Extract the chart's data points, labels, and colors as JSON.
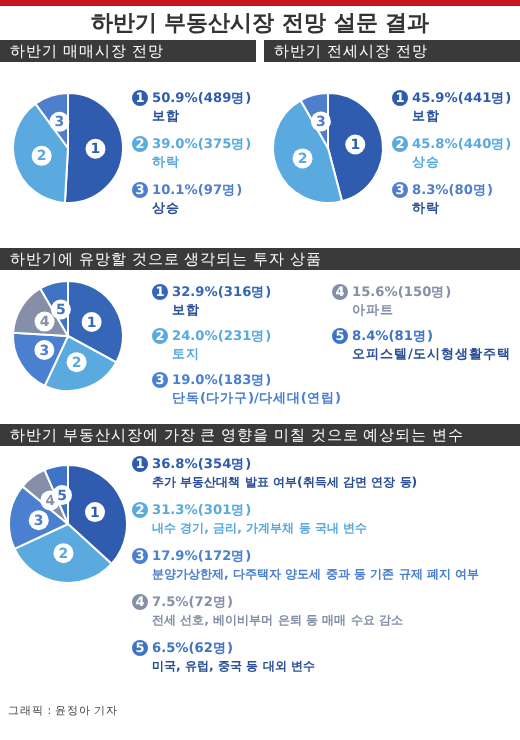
{
  "chart_data": [
    {
      "type": "pie",
      "title": "하반기 부동산시장 전망 설문 결과",
      "subtitle": "하반기 매매시장 전망",
      "legend": "right",
      "categories": [
        "보합",
        "하락",
        "상승"
      ],
      "values": [
        50.9,
        39.0,
        10.1
      ],
      "value_labels": [
        "50.9%(489명)",
        "39.0%(375명)",
        "10.1%(97명)"
      ],
      "colors": [
        "#2f5cae",
        "#5aaadf",
        "#4f7fcc"
      ],
      "annotations": [
        {
          "text": "1",
          "x": "보합"
        },
        {
          "text": "2",
          "x": "하락"
        },
        {
          "text": "3",
          "x": "상승"
        }
      ]
    },
    {
      "type": "pie",
      "subtitle": "하반기 전세시장 전망",
      "legend": "right",
      "categories": [
        "보합",
        "상승",
        "하락"
      ],
      "values": [
        45.9,
        45.8,
        8.3
      ],
      "value_labels": [
        "45.9%(441명)",
        "45.8%(440명)",
        "8.3%(80명)"
      ],
      "colors": [
        "#2f5cae",
        "#5aaadf",
        "#4f7fcc"
      ],
      "annotations": [
        {
          "text": "1",
          "x": "보합"
        },
        {
          "text": "2",
          "x": "상승"
        },
        {
          "text": "3",
          "x": "하락"
        }
      ]
    },
    {
      "type": "pie",
      "subtitle": "하반기에 유망할 것으로 생각되는 투자 상품",
      "legend": "right",
      "categories": [
        "보합",
        "토지",
        "단독(다가구)/다세대(연립)",
        "아파트",
        "오피스텔/도시형생활주택"
      ],
      "values": [
        32.9,
        24.0,
        19.0,
        15.6,
        8.4
      ],
      "value_labels": [
        "32.9%(316명)",
        "24.0%(231명)",
        "19.0%(183명)",
        "15.6%(150명)",
        "8.4%(81명)"
      ],
      "colors": [
        "#3566b8",
        "#5aaadf",
        "#4a80cf",
        "#8590a8",
        "#3f74c4"
      ],
      "annotations": [
        {
          "text": "1",
          "x": "보합"
        },
        {
          "text": "2",
          "x": "토지"
        },
        {
          "text": "3",
          "x": "단독(다가구)/다세대(연립)"
        },
        {
          "text": "4",
          "x": "아파트"
        },
        {
          "text": "5",
          "x": "오피스텔/도시형생활주택"
        }
      ]
    },
    {
      "type": "pie",
      "subtitle": "하반기 부동산시장에 가장 큰 영향을 미칠 것으로 예상되는 변수",
      "legend": "right",
      "categories": [
        "추가 부동산대책 발표 여부(취득세 감면 연장 등)",
        "내수 경기, 금리, 가계부채 등 국내 변수",
        "분양가상한제, 다주택자 양도세 중과 등 기존 규제 폐지 여부",
        "전세 선호, 베이비부머 은퇴 등 매매 수요 감소",
        "미국, 유럽, 중국 등 대외 변수"
      ],
      "values": [
        36.8,
        31.3,
        17.9,
        7.5,
        6.5
      ],
      "value_labels": [
        "36.8%(354명)",
        "31.3%(301명)",
        "17.9%(172명)",
        "7.5%(72명)",
        "6.5%(62명)"
      ],
      "colors": [
        "#2f5cae",
        "#5aaadf",
        "#4a80cf",
        "#8590a8",
        "#3f74c4"
      ],
      "annotations": [
        {
          "text": "1",
          "x": "추가 부동산대책 발표 여부(취득세 감면 연장 등)"
        },
        {
          "text": "2",
          "x": "내수 경기, 금리, 가계부채 등 국내 변수"
        },
        {
          "text": "3",
          "x": "분양가상한제, 다주택자 양도세 중과 등 기존 규제 폐지 여부"
        },
        {
          "text": "4",
          "x": "전세 선호, 베이비부머 은퇴 등 매매 수요 감소"
        },
        {
          "text": "5",
          "x": "미국, 유럽, 중국 등 대외 변수"
        },
        "그래픽 : 윤정아 기자"
      ]
    }
  ]
}
